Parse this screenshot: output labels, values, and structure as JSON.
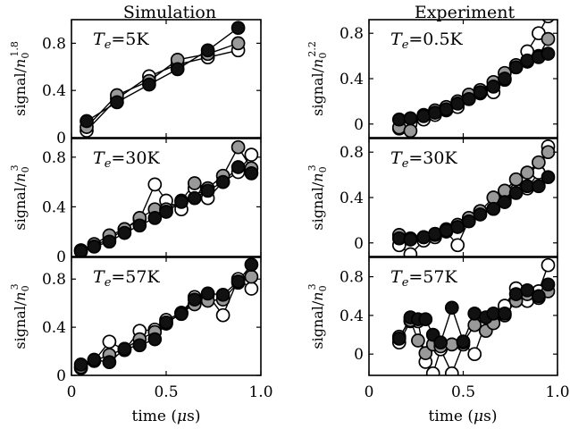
{
  "column_titles": [
    "Simulation",
    "Experiment"
  ],
  "x_axis": {
    "label_text": "time (",
    "label_mu": "μ",
    "label_unit": "s)",
    "tick_labels": [
      "0",
      "0.5",
      "1.0"
    ]
  },
  "colors": {
    "open": "#ffffff",
    "gray": "#999999",
    "black": "#111111"
  },
  "chart_data": [
    {
      "type": "line",
      "column": 0,
      "row": 0,
      "annotation": {
        "T": "T",
        "sub": "e",
        "value": "=5K"
      },
      "ylabel": {
        "base": "signal/",
        "n": "n",
        "sub": "0",
        "exp": "1.8"
      },
      "xlim": [
        0,
        1.0
      ],
      "ylim": [
        0,
        1.0
      ],
      "yticks": [
        0,
        0.4,
        0.8
      ],
      "ytick_labels": [
        "0",
        "0.4",
        "0.8"
      ],
      "series": [
        {
          "fill": "open",
          "x": [
            0.08,
            0.24,
            0.41,
            0.56,
            0.72,
            0.88
          ],
          "y": [
            0.06,
            0.33,
            0.52,
            0.62,
            0.68,
            0.74
          ]
        },
        {
          "fill": "gray",
          "x": [
            0.08,
            0.24,
            0.41,
            0.56,
            0.72,
            0.88
          ],
          "y": [
            0.09,
            0.36,
            0.48,
            0.66,
            0.71,
            0.8
          ]
        },
        {
          "fill": "black",
          "x": [
            0.08,
            0.24,
            0.41,
            0.56,
            0.72,
            0.88
          ],
          "y": [
            0.14,
            0.3,
            0.45,
            0.58,
            0.74,
            0.93
          ]
        }
      ]
    },
    {
      "type": "line",
      "column": 0,
      "row": 1,
      "annotation": {
        "T": "T",
        "sub": "e",
        "value": "=30K"
      },
      "ylabel": {
        "base": "signal/",
        "n": "n",
        "sub": "0",
        "exp": "3"
      },
      "xlim": [
        0,
        1.0
      ],
      "ylim": [
        0,
        0.95
      ],
      "yticks": [
        0,
        0.4,
        0.8
      ],
      "ytick_labels": [
        "0",
        "0.4",
        "0.8"
      ],
      "series": [
        {
          "fill": "open",
          "x": [
            0.05,
            0.12,
            0.2,
            0.28,
            0.36,
            0.44,
            0.5,
            0.58,
            0.65,
            0.72,
            0.8,
            0.88,
            0.95
          ],
          "y": [
            0.05,
            0.09,
            0.14,
            0.22,
            0.3,
            0.58,
            0.45,
            0.38,
            0.55,
            0.47,
            0.6,
            0.68,
            0.82
          ]
        },
        {
          "fill": "gray",
          "x": [
            0.05,
            0.12,
            0.2,
            0.28,
            0.36,
            0.44,
            0.5,
            0.58,
            0.65,
            0.72,
            0.8,
            0.88,
            0.95
          ],
          "y": [
            0.05,
            0.1,
            0.17,
            0.22,
            0.31,
            0.38,
            0.38,
            0.45,
            0.59,
            0.55,
            0.65,
            0.88,
            0.71
          ]
        },
        {
          "fill": "black",
          "x": [
            0.05,
            0.12,
            0.2,
            0.28,
            0.36,
            0.44,
            0.5,
            0.58,
            0.65,
            0.72,
            0.8,
            0.88,
            0.95
          ],
          "y": [
            0.04,
            0.08,
            0.12,
            0.19,
            0.25,
            0.31,
            0.36,
            0.44,
            0.47,
            0.53,
            0.6,
            0.72,
            0.67
          ]
        }
      ]
    },
    {
      "type": "line",
      "column": 0,
      "row": 2,
      "annotation": {
        "T": "T",
        "sub": "e",
        "value": "=57K"
      },
      "ylabel": {
        "base": "signal/",
        "n": "n",
        "sub": "0",
        "exp": "3"
      },
      "xlim": [
        0,
        1.0
      ],
      "ylim": [
        0,
        0.98
      ],
      "yticks": [
        0,
        0.4,
        0.8
      ],
      "ytick_labels": [
        "0",
        "0.4",
        "0.8"
      ],
      "series": [
        {
          "fill": "open",
          "x": [
            0.05,
            0.12,
            0.2,
            0.28,
            0.36,
            0.44,
            0.5,
            0.58,
            0.65,
            0.72,
            0.8,
            0.88,
            0.95
          ],
          "y": [
            0.06,
            0.12,
            0.28,
            0.21,
            0.37,
            0.38,
            0.46,
            0.52,
            0.65,
            0.67,
            0.5,
            0.8,
            0.72
          ]
        },
        {
          "fill": "gray",
          "x": [
            0.05,
            0.12,
            0.2,
            0.28,
            0.36,
            0.44,
            0.5,
            0.58,
            0.65,
            0.72,
            0.8,
            0.88,
            0.95
          ],
          "y": [
            0.07,
            0.12,
            0.17,
            0.22,
            0.3,
            0.36,
            0.43,
            0.52,
            0.59,
            0.62,
            0.63,
            0.77,
            0.82
          ]
        },
        {
          "fill": "black",
          "x": [
            0.05,
            0.12,
            0.2,
            0.28,
            0.36,
            0.44,
            0.5,
            0.58,
            0.65,
            0.72,
            0.8,
            0.88,
            0.95
          ],
          "y": [
            0.09,
            0.13,
            0.11,
            0.22,
            0.25,
            0.3,
            0.44,
            0.51,
            0.63,
            0.68,
            0.67,
            0.78,
            0.92
          ]
        }
      ]
    },
    {
      "type": "line",
      "column": 1,
      "row": 0,
      "annotation": {
        "T": "T",
        "sub": "e",
        "value": "=0.5K"
      },
      "ylabel": {
        "base": "signal/",
        "n": "n",
        "sub": "0",
        "exp": "2.2"
      },
      "xlim": [
        0,
        1.0
      ],
      "ylim": [
        -0.12,
        0.92
      ],
      "yticks": [
        0,
        0.4,
        0.8
      ],
      "ytick_labels": [
        "0",
        "0.4",
        "0.8"
      ],
      "series": [
        {
          "fill": "open",
          "x": [
            0.16,
            0.22,
            0.29,
            0.35,
            0.41,
            0.47,
            0.53,
            0.59,
            0.66,
            0.72,
            0.78,
            0.84,
            0.9,
            0.95
          ],
          "y": [
            -0.04,
            0.0,
            0.04,
            0.08,
            0.12,
            0.15,
            0.22,
            0.27,
            0.28,
            0.39,
            0.5,
            0.64,
            0.8,
            0.95
          ]
        },
        {
          "fill": "gray",
          "x": [
            0.16,
            0.22,
            0.29,
            0.35,
            0.41,
            0.47,
            0.53,
            0.59,
            0.66,
            0.72,
            0.78,
            0.84,
            0.9,
            0.95
          ],
          "y": [
            -0.03,
            -0.06,
            0.08,
            0.12,
            0.15,
            0.2,
            0.26,
            0.3,
            0.37,
            0.45,
            0.52,
            0.55,
            0.6,
            0.75
          ]
        },
        {
          "fill": "black",
          "x": [
            0.16,
            0.22,
            0.29,
            0.35,
            0.41,
            0.47,
            0.53,
            0.59,
            0.66,
            0.72,
            0.78,
            0.84,
            0.9,
            0.95
          ],
          "y": [
            0.04,
            0.05,
            0.07,
            0.1,
            0.13,
            0.18,
            0.22,
            0.28,
            0.33,
            0.4,
            0.5,
            0.56,
            0.59,
            0.62
          ]
        }
      ]
    },
    {
      "type": "line",
      "column": 1,
      "row": 1,
      "annotation": {
        "T": "T",
        "sub": "e",
        "value": "=30K"
      },
      "ylabel": {
        "base": "signal/",
        "n": "n",
        "sub": "0",
        "exp": "3"
      },
      "xlim": [
        0,
        1.0
      ],
      "ylim": [
        -0.12,
        0.92
      ],
      "yticks": [
        0,
        0.4,
        0.8
      ],
      "ytick_labels": [
        "0",
        "0.4",
        "0.8"
      ],
      "series": [
        {
          "fill": "open",
          "x": [
            0.16,
            0.22,
            0.29,
            0.35,
            0.41,
            0.47,
            0.53,
            0.59,
            0.66,
            0.72,
            0.78,
            0.84,
            0.9,
            0.95
          ],
          "y": [
            -0.02,
            -0.1,
            0.02,
            0.05,
            0.1,
            -0.02,
            0.2,
            0.28,
            0.3,
            0.38,
            0.46,
            0.48,
            0.62,
            0.85
          ]
        },
        {
          "fill": "gray",
          "x": [
            0.16,
            0.22,
            0.29,
            0.35,
            0.41,
            0.47,
            0.53,
            0.59,
            0.66,
            0.72,
            0.78,
            0.84,
            0.9,
            0.95
          ],
          "y": [
            0.07,
            0.04,
            0.05,
            0.07,
            0.12,
            0.16,
            0.22,
            0.28,
            0.4,
            0.46,
            0.56,
            0.62,
            0.71,
            0.8
          ]
        },
        {
          "fill": "black",
          "x": [
            0.16,
            0.22,
            0.29,
            0.35,
            0.41,
            0.47,
            0.53,
            0.59,
            0.66,
            0.72,
            0.78,
            0.84,
            0.9,
            0.95
          ],
          "y": [
            0.04,
            0.03,
            0.05,
            0.08,
            0.11,
            0.14,
            0.19,
            0.25,
            0.3,
            0.36,
            0.44,
            0.5,
            0.5,
            0.58
          ]
        }
      ]
    },
    {
      "type": "line",
      "column": 1,
      "row": 2,
      "annotation": {
        "T": "T",
        "sub": "e",
        "value": "=57K"
      },
      "ylabel": {
        "base": "signal/",
        "n": "n",
        "sub": "0",
        "exp": "3"
      },
      "xlim": [
        0,
        1.0
      ],
      "ylim": [
        -0.22,
        1.0
      ],
      "yticks": [
        0,
        0.4,
        0.8
      ],
      "ytick_labels": [
        "0",
        "0.4",
        "0.8"
      ],
      "series": [
        {
          "fill": "open",
          "x": [
            0.16,
            0.22,
            0.26,
            0.3,
            0.34,
            0.38,
            0.44,
            0.5,
            0.56,
            0.62,
            0.66,
            0.72,
            0.78,
            0.84,
            0.9,
            0.95
          ],
          "y": [
            0.12,
            0.34,
            0.34,
            -0.08,
            -0.2,
            0.05,
            -0.2,
            0.1,
            0.0,
            0.33,
            0.38,
            0.5,
            0.68,
            0.55,
            0.65,
            0.92
          ]
        },
        {
          "fill": "gray",
          "x": [
            0.16,
            0.22,
            0.26,
            0.3,
            0.34,
            0.38,
            0.44,
            0.5,
            0.56,
            0.62,
            0.66,
            0.72,
            0.78,
            0.84,
            0.9,
            0.95
          ],
          "y": [
            0.18,
            0.35,
            0.14,
            0.01,
            0.1,
            0.08,
            0.1,
            0.12,
            0.3,
            0.24,
            0.32,
            0.4,
            0.55,
            0.62,
            0.58,
            0.65
          ]
        },
        {
          "fill": "black",
          "x": [
            0.16,
            0.22,
            0.26,
            0.3,
            0.34,
            0.38,
            0.44,
            0.5,
            0.56,
            0.62,
            0.66,
            0.72,
            0.78,
            0.84,
            0.9,
            0.95
          ],
          "y": [
            0.16,
            0.38,
            0.36,
            0.36,
            0.2,
            0.12,
            0.48,
            0.13,
            0.42,
            0.38,
            0.42,
            0.42,
            0.62,
            0.66,
            0.6,
            0.72
          ]
        }
      ]
    }
  ]
}
